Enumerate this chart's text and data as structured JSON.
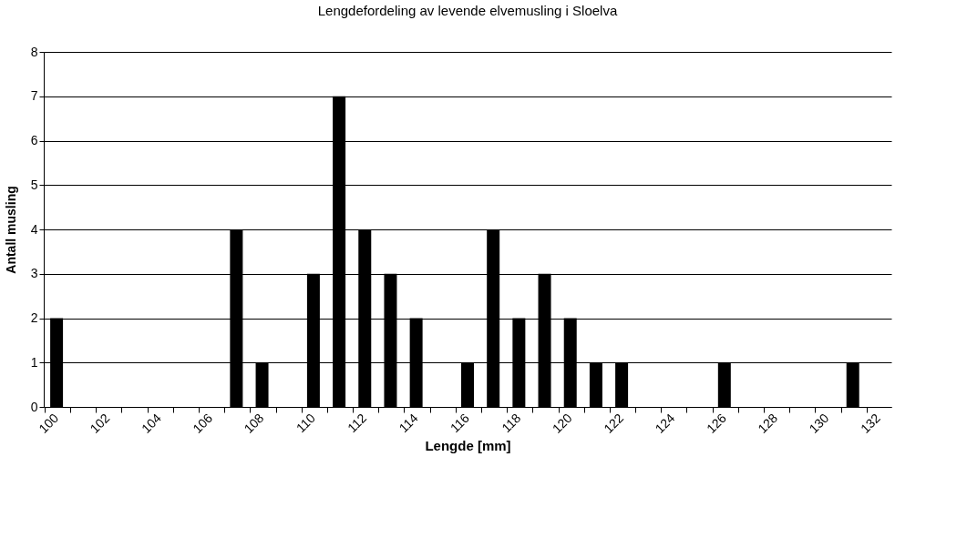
{
  "chart_data": {
    "type": "bar",
    "title": "Lengdefordeling av levende elvemusling i Sloelva",
    "xlabel": "Lengde [mm]",
    "ylabel": "Antall musling",
    "categories": [
      "100",
      null,
      "102",
      null,
      "104",
      null,
      "106",
      null,
      "108",
      null,
      "110",
      null,
      "112",
      null,
      "114",
      null,
      "116",
      null,
      "118",
      null,
      "120",
      null,
      "122",
      null,
      "124",
      null,
      "126",
      null,
      "128",
      null,
      "130",
      null,
      "132"
    ],
    "values": [
      2,
      0,
      0,
      0,
      0,
      0,
      0,
      4,
      1,
      0,
      3,
      7,
      4,
      3,
      2,
      0,
      1,
      4,
      2,
      3,
      2,
      1,
      1,
      0,
      0,
      0,
      1,
      0,
      0,
      0,
      0,
      1,
      0
    ],
    "color": "#000000",
    "ylim": [
      0,
      8
    ],
    "yticks": [
      0,
      1,
      2,
      3,
      4,
      5,
      6,
      7,
      8
    ],
    "grid": "y"
  }
}
